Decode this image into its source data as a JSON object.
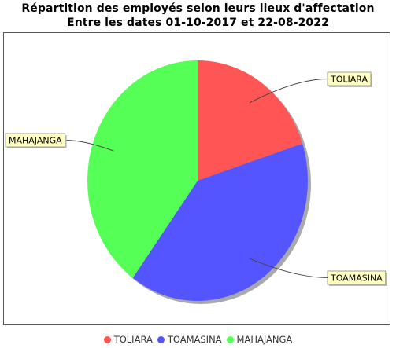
{
  "chart_data": {
    "type": "pie",
    "title": "Répartition des employés selon leurs lieux d'affectation",
    "subtitle": "Entre les dates 01-10-2017 et 22-08-2022",
    "slices": [
      {
        "label": "TOLIARA",
        "value": 20,
        "color": "#ff5555"
      },
      {
        "label": "TOAMASINA",
        "value": 40,
        "color": "#5555ff"
      },
      {
        "label": "MAHAJANGA",
        "value": 40,
        "color": "#55ff55"
      }
    ],
    "start_angle_deg": 0,
    "direction": "clockwise",
    "legend_position": "bottom",
    "shadow": true
  }
}
